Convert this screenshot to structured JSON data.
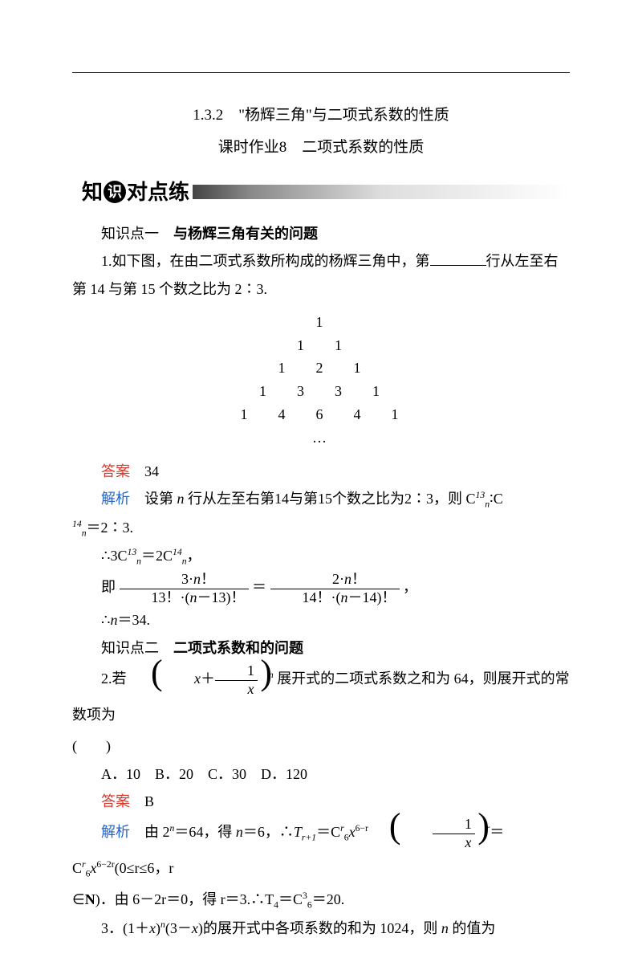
{
  "titles": {
    "t1": "1.3.2　\"杨辉三角\"与二项式系数的性质",
    "t2": "课时作业8　二项式系数的性质"
  },
  "banner": {
    "pre": "知",
    "circle": "识",
    "post": "对点练"
  },
  "kp1": {
    "label": "知识点一",
    "title": "与杨辉三角有关的问题"
  },
  "q1": {
    "prefix": "1.如下图，在由二项式系数所构成的杨辉三角中，第",
    "suffix": "行从左至右第 14 与第 15 个数之比为 2∶3."
  },
  "triangle": {
    "r1": "1",
    "r2": "1    1",
    "r3": "1    2    1",
    "r4": "1    3    3    1",
    "r5": "1    4    6    4    1",
    "dots": "…"
  },
  "ans1": {
    "label": "答案",
    "value": "34"
  },
  "ana1": {
    "label": "解析",
    "line1a": "设第",
    "line1b": "行从左至右第14与第15个数之比为2∶3，则 C",
    "line1c": "∶C",
    "line1d": "＝2∶3.",
    "line2a": "∴3C",
    "line2b": "＝2C",
    "line2c": "，",
    "line3_pre": "即",
    "frac1_num": "3·n！",
    "frac1_den": "13！·(n－13)！",
    "eq": "＝",
    "frac2_num": "2·n！",
    "frac2_den": "14！·(n－14)！",
    "line3_post": "，",
    "line4": "∴n＝34."
  },
  "kp2": {
    "label": "知识点二",
    "title": "二项式系数和的问题"
  },
  "q2": {
    "num": "2.若",
    "inner_top": "1",
    "inner_bot": "x",
    "inner_pre": "x＋",
    "exp": "n",
    "rest": "展开式的二项式系数之和为 64，则展开式的常数项为"
  },
  "opts2": {
    "a": "A．10",
    "b": "B．20",
    "c": "C．30",
    "d": "D．120"
  },
  "ans2": {
    "label": "答案",
    "value": "B"
  },
  "ana2": {
    "label": "解析",
    "p1a": "由 2",
    "p1b": "＝64，得",
    "p1c": "＝6，∴",
    "p1d": "＝C",
    "p1e": "x",
    "p1f": "＝C",
    "p1g": "x",
    "p1h": "(0≤r≤6，r",
    "p2a": "∈",
    "p2b": "．由 6－2r＝0，得 r＝3.∴T",
    "p2c": "＝C",
    "p2d": "＝20.",
    "inner_top": "1",
    "inner_bot": "x"
  },
  "q3": {
    "text": "3．(1＋x)ⁿ(3－x)的展开式中各项系数的和为 1024，则 n 的值为"
  },
  "colors": {
    "answer": "#d9362a",
    "analysis": "#2266cc",
    "text": "#000000",
    "background": "#ffffff"
  },
  "typography": {
    "body_fontsize": 18,
    "title_fontsize": 19,
    "banner_fontsize": 26,
    "line_height": 1.9
  }
}
